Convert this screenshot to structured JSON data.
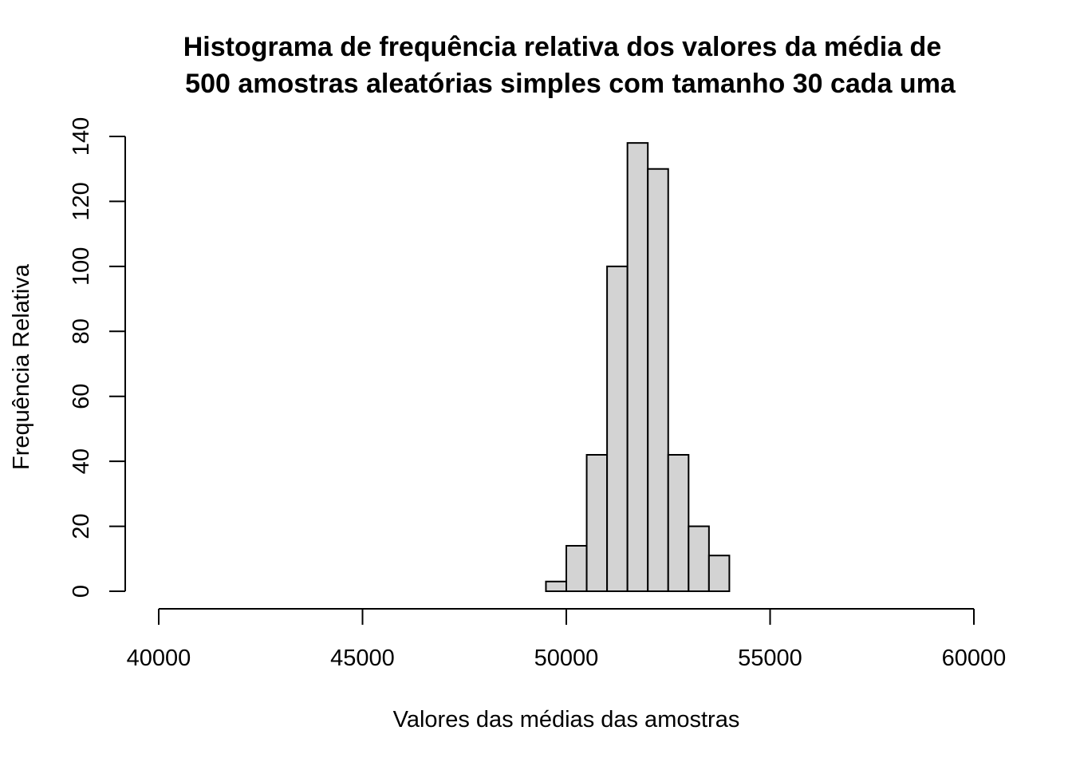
{
  "chart_data": {
    "type": "bar",
    "title_lines": [
      "Histograma de frequência relativa dos valores da média de",
      "500 amostras aleatórias simples com tamanho 30 cada uma"
    ],
    "xlabel": "Valores das médias das amostras",
    "ylabel": "Frequência Relativa",
    "xlim": [
      40000,
      60000
    ],
    "ylim": [
      0,
      140
    ],
    "x_ticks": [
      "40000",
      "45000",
      "50000",
      "55000",
      "60000"
    ],
    "y_ticks": [
      "0",
      "20",
      "40",
      "60",
      "80",
      "100",
      "120",
      "140"
    ],
    "bin_width": 500,
    "bins": [
      {
        "start": 40000,
        "end": 40500,
        "value": 0
      },
      {
        "start": 40500,
        "end": 41000,
        "value": 0
      },
      {
        "start": 41000,
        "end": 41500,
        "value": 0
      },
      {
        "start": 41500,
        "end": 42000,
        "value": 0
      },
      {
        "start": 42000,
        "end": 42500,
        "value": 0
      },
      {
        "start": 42500,
        "end": 43000,
        "value": 0
      },
      {
        "start": 43000,
        "end": 43500,
        "value": 0
      },
      {
        "start": 43500,
        "end": 44000,
        "value": 0
      },
      {
        "start": 44000,
        "end": 44500,
        "value": 0
      },
      {
        "start": 44500,
        "end": 45000,
        "value": 0
      },
      {
        "start": 45000,
        "end": 45500,
        "value": 0
      },
      {
        "start": 45500,
        "end": 46000,
        "value": 0
      },
      {
        "start": 46000,
        "end": 46500,
        "value": 0
      },
      {
        "start": 46500,
        "end": 47000,
        "value": 0
      },
      {
        "start": 47000,
        "end": 47500,
        "value": 0
      },
      {
        "start": 47500,
        "end": 48000,
        "value": 0
      },
      {
        "start": 48000,
        "end": 48500,
        "value": 0
      },
      {
        "start": 48500,
        "end": 49000,
        "value": 0
      },
      {
        "start": 49000,
        "end": 49500,
        "value": 0
      },
      {
        "start": 49500,
        "end": 50000,
        "value": 3
      },
      {
        "start": 50000,
        "end": 50500,
        "value": 14
      },
      {
        "start": 50500,
        "end": 51000,
        "value": 42
      },
      {
        "start": 51000,
        "end": 51500,
        "value": 100
      },
      {
        "start": 51500,
        "end": 52000,
        "value": 138
      },
      {
        "start": 52000,
        "end": 52500,
        "value": 130
      },
      {
        "start": 52500,
        "end": 53000,
        "value": 42
      },
      {
        "start": 53000,
        "end": 53500,
        "value": 20
      },
      {
        "start": 53500,
        "end": 54000,
        "value": 11
      },
      {
        "start": 54000,
        "end": 54500,
        "value": 0
      },
      {
        "start": 54500,
        "end": 55000,
        "value": 0
      },
      {
        "start": 55000,
        "end": 55500,
        "value": 0
      },
      {
        "start": 55500,
        "end": 56000,
        "value": 0
      },
      {
        "start": 56000,
        "end": 56500,
        "value": 0
      },
      {
        "start": 56500,
        "end": 57000,
        "value": 0
      },
      {
        "start": 57000,
        "end": 57500,
        "value": 0
      },
      {
        "start": 57500,
        "end": 58000,
        "value": 0
      },
      {
        "start": 58000,
        "end": 58500,
        "value": 0
      },
      {
        "start": 58500,
        "end": 59000,
        "value": 0
      },
      {
        "start": 59000,
        "end": 59500,
        "value": 0
      },
      {
        "start": 59500,
        "end": 60000,
        "value": 0
      }
    ],
    "bar_fill": "#d3d3d3",
    "bar_stroke": "#000000",
    "grid": false
  }
}
